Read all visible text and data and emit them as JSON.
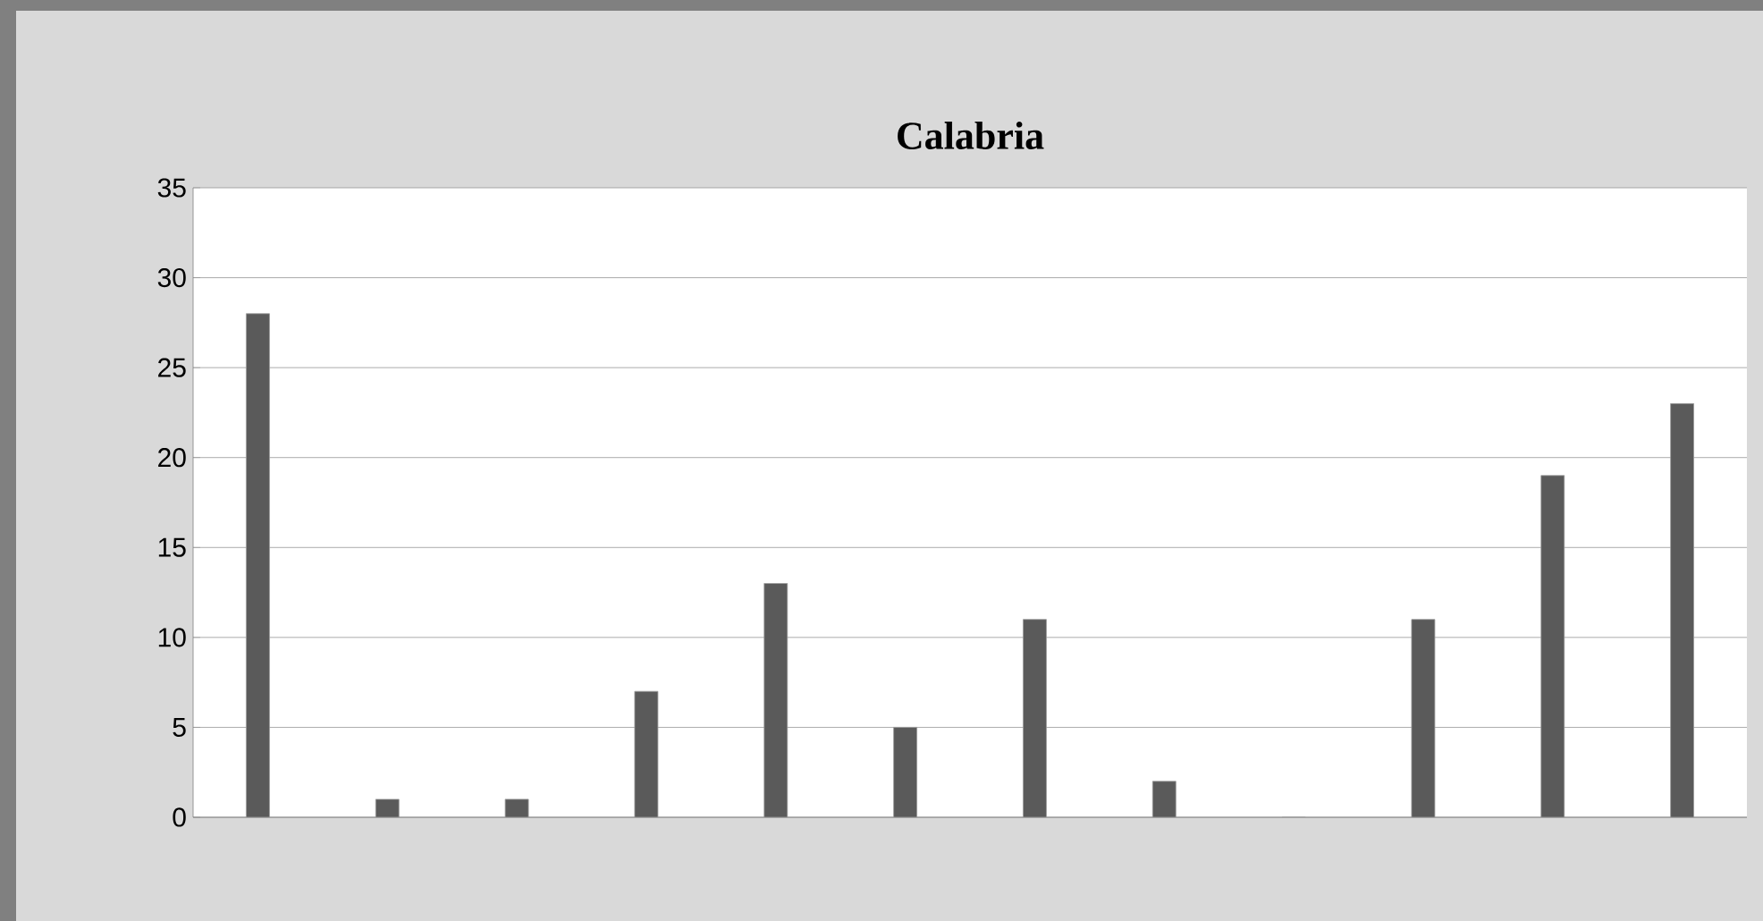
{
  "chart_data": {
    "type": "bar",
    "title": "Calabria",
    "categories": [
      null,
      null,
      null,
      null,
      null,
      null,
      null,
      null,
      null,
      null,
      null,
      null
    ],
    "values": [
      28,
      1,
      1,
      7,
      13,
      5,
      11,
      2,
      0,
      11,
      19,
      23
    ],
    "color": "#5a5a5a",
    "ylim": [
      0,
      35
    ],
    "yticks": [
      0,
      5,
      10,
      15,
      20,
      25,
      30,
      35
    ],
    "grid": "y"
  }
}
